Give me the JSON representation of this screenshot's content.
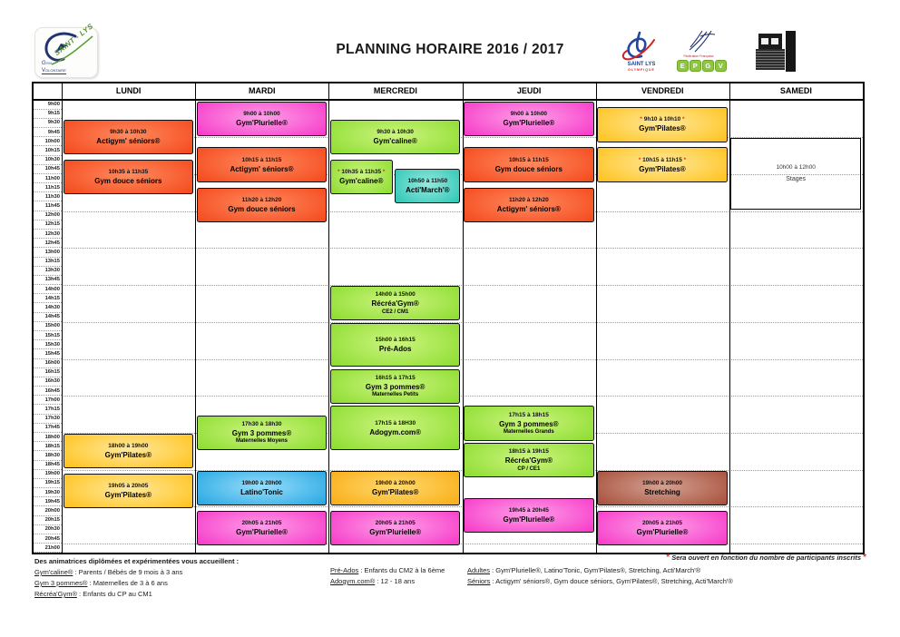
{
  "title": "PLANNING HORAIRE  2016 / 2017",
  "logos": {
    "club": {
      "arc_text": "SAINT - LYS",
      "line1": "Gym",
      "line2": "Volontaire"
    },
    "olympique": {
      "line1": "SAINT LYS",
      "line2": "OLYMPIQUE"
    },
    "epgv": {
      "federation": "Fédération Française",
      "letters": [
        "E",
        "P",
        "G",
        "V"
      ]
    }
  },
  "palette": {
    "red": {
      "base": "#f44b1e",
      "light": "#ff8a5f"
    },
    "magenta": {
      "base": "#f63cc9",
      "light": "#ff9fe8"
    },
    "green": {
      "base": "#8fdd33",
      "light": "#ccf57f"
    },
    "gold": {
      "base": "#ffc320",
      "light": "#ffe99b"
    },
    "amber": {
      "base": "#f9ae17",
      "light": "#ffd96e"
    },
    "blue": {
      "base": "#29a9e3",
      "light": "#97ddfb"
    },
    "teal": {
      "base": "#30c7b6",
      "light": "#96e9de"
    },
    "brown": {
      "base": "#a8513c",
      "light": "#d3a193"
    },
    "white": {
      "base": "#ffffff",
      "light": "#ffffff"
    }
  },
  "schedule": {
    "days": [
      "LUNDI",
      "MARDI",
      "MERCREDI",
      "JEUDI",
      "VENDREDI",
      "SAMEDI"
    ],
    "time_labels": [
      "9h00",
      "9h15",
      "9h30",
      "9h45",
      "10h00",
      "10h15",
      "10h30",
      "10h45",
      "11h00",
      "11h15",
      "11h30",
      "11h45",
      "12h00",
      "12h15",
      "12h30",
      "12h45",
      "13h00",
      "13h15",
      "13h30",
      "13h45",
      "14h00",
      "14h15",
      "14h30",
      "14h45",
      "15h00",
      "15h15",
      "15h30",
      "15h45",
      "16h00",
      "16h15",
      "16h30",
      "16h45",
      "17h00",
      "17h15",
      "17h30",
      "17h45",
      "18h00",
      "18h15",
      "18h30",
      "18h45",
      "19h00",
      "19h15",
      "19h30",
      "19h45",
      "20h00",
      "20h15",
      "20h30",
      "20h45",
      "21h00"
    ],
    "blocks": [
      {
        "day": 0,
        "start": 570,
        "end": 630,
        "time": "9h30 à 10h30",
        "name": "Actigym' séniors®",
        "sub": "",
        "color": "red",
        "starred": false,
        "half": ""
      },
      {
        "day": 0,
        "start": 635,
        "end": 695,
        "time": "10h35 à 11h35",
        "name": "Gym douce séniors",
        "sub": "",
        "color": "red",
        "starred": false,
        "half": ""
      },
      {
        "day": 0,
        "start": 1080,
        "end": 1140,
        "time": "18h00 à 19h00",
        "name": "Gym'Pilates®",
        "sub": "",
        "color": "gold",
        "starred": false,
        "half": ""
      },
      {
        "day": 0,
        "start": 1145,
        "end": 1205,
        "time": "19h05 à 20h05",
        "name": "Gym'Pilates®",
        "sub": "",
        "color": "gold",
        "starred": false,
        "half": ""
      },
      {
        "day": 1,
        "start": 540,
        "end": 600,
        "time": "9h00 à 10h00",
        "name": "Gym'Plurielle®",
        "sub": "",
        "color": "magenta",
        "starred": false,
        "half": ""
      },
      {
        "day": 1,
        "start": 615,
        "end": 675,
        "time": "10h15 à 11h15",
        "name": "Actigym' séniors®",
        "sub": "",
        "color": "red",
        "starred": false,
        "half": ""
      },
      {
        "day": 1,
        "start": 680,
        "end": 740,
        "time": "11h20 à 12h20",
        "name": "Gym douce séniors",
        "sub": "",
        "color": "red",
        "starred": false,
        "half": ""
      },
      {
        "day": 1,
        "start": 1050,
        "end": 1110,
        "time": "17h30 à 18h30",
        "name": "Gym 3 pommes®",
        "sub": "Maternelles Moyens",
        "color": "green",
        "starred": false,
        "half": ""
      },
      {
        "day": 1,
        "start": 1140,
        "end": 1200,
        "time": "19h00 à 20h00",
        "name": "Latino'Tonic",
        "sub": "",
        "color": "blue",
        "starred": false,
        "half": ""
      },
      {
        "day": 1,
        "start": 1205,
        "end": 1265,
        "time": "20h05 à 21h05",
        "name": "Gym'Plurielle®",
        "sub": "",
        "color": "magenta",
        "starred": false,
        "half": ""
      },
      {
        "day": 2,
        "start": 570,
        "end": 630,
        "time": "9h30 à 10h30",
        "name": "Gym'caline®",
        "sub": "",
        "color": "green",
        "starred": false,
        "half": ""
      },
      {
        "day": 2,
        "start": 635,
        "end": 695,
        "time": "10h35 à 11h35",
        "name": "Gym'caline®",
        "sub": "",
        "color": "green",
        "starred": true,
        "half": "left"
      },
      {
        "day": 2,
        "start": 650,
        "end": 710,
        "time": "10h50 à 11h50",
        "name": "Acti'March'®",
        "sub": "",
        "color": "teal",
        "starred": false,
        "half": "right"
      },
      {
        "day": 2,
        "start": 840,
        "end": 900,
        "time": "14h00 à 15h00",
        "name": "Récréa'Gym®",
        "sub": "CE2 / CM1",
        "color": "green",
        "starred": false,
        "half": ""
      },
      {
        "day": 2,
        "start": 900,
        "end": 975,
        "time": "15h00 à 16h15",
        "name": "Pré-Ados",
        "sub": "",
        "color": "green",
        "starred": false,
        "half": ""
      },
      {
        "day": 2,
        "start": 975,
        "end": 1035,
        "time": "16h15 à 17h15",
        "name": "Gym 3 pommes®",
        "sub": "Maternelles Petits",
        "color": "green",
        "starred": false,
        "half": ""
      },
      {
        "day": 2,
        "start": 1035,
        "end": 1110,
        "time": "17h15 à 18H30",
        "name": "Adogym.com®",
        "sub": "",
        "color": "green",
        "starred": false,
        "half": ""
      },
      {
        "day": 2,
        "start": 1140,
        "end": 1200,
        "time": "19h00 à 20h00",
        "name": "Gym'Pilates®",
        "sub": "",
        "color": "amber",
        "starred": false,
        "half": ""
      },
      {
        "day": 2,
        "start": 1205,
        "end": 1265,
        "time": "20h05 à 21h05",
        "name": "Gym'Plurielle®",
        "sub": "",
        "color": "magenta",
        "starred": false,
        "half": ""
      },
      {
        "day": 3,
        "start": 540,
        "end": 600,
        "time": "9h00 à 10h00",
        "name": "Gym'Plurielle®",
        "sub": "",
        "color": "magenta",
        "starred": false,
        "half": ""
      },
      {
        "day": 3,
        "start": 615,
        "end": 675,
        "time": "10h15 à 11h15",
        "name": "Gym douce séniors",
        "sub": "",
        "color": "red",
        "starred": false,
        "half": ""
      },
      {
        "day": 3,
        "start": 680,
        "end": 740,
        "time": "11h20 à 12h20",
        "name": "Actigym' séniors®",
        "sub": "",
        "color": "red",
        "starred": false,
        "half": ""
      },
      {
        "day": 3,
        "start": 1035,
        "end": 1095,
        "time": "17h15 à 18h15",
        "name": "Gym 3 pommes®",
        "sub": "Maternelles Grands",
        "color": "green",
        "starred": false,
        "half": ""
      },
      {
        "day": 3,
        "start": 1095,
        "end": 1155,
        "time": "18h15 à 19h15",
        "name": "Récréa'Gym®",
        "sub": "CP / CE1",
        "color": "green",
        "starred": false,
        "half": ""
      },
      {
        "day": 3,
        "start": 1185,
        "end": 1245,
        "time": "19h45 à 20h45",
        "name": "Gym'Plurielle®",
        "sub": "",
        "color": "magenta",
        "starred": false,
        "half": ""
      },
      {
        "day": 4,
        "start": 550,
        "end": 610,
        "time": "9h10 à 10h10",
        "name": "Gym'Pilates®",
        "sub": "",
        "color": "gold",
        "starred": true,
        "half": ""
      },
      {
        "day": 4,
        "start": 615,
        "end": 675,
        "time": "10h15 à 11h15",
        "name": "Gym'Pilates®",
        "sub": "",
        "color": "gold",
        "starred": true,
        "half": ""
      },
      {
        "day": 4,
        "start": 1140,
        "end": 1200,
        "time": "19h00 à 20h00",
        "name": "Stretching",
        "sub": "",
        "color": "brown",
        "starred": false,
        "half": ""
      },
      {
        "day": 4,
        "start": 1205,
        "end": 1265,
        "time": "20h05 à 21h05",
        "name": "Gym'Plurielle®",
        "sub": "",
        "color": "magenta",
        "starred": false,
        "half": ""
      },
      {
        "day": 5,
        "start": 600,
        "end": 720,
        "time": "10h00 à 12h00",
        "name": "Stages",
        "sub": "",
        "color": "white",
        "starred": false,
        "half": ""
      }
    ]
  },
  "footer": {
    "heading": "Des animatrices diplômées et expérimentées vous accueillent :",
    "col1": [
      {
        "term": "Gym'caline®",
        "rest": " : Parents / Bébés de 9 mois à 3 ans"
      },
      {
        "term": "Gym 3 pommes®",
        "rest": " : Maternelles de 3 à 6 ans"
      },
      {
        "term": "Récréa'Gym®",
        "rest": " : Enfants du CP au CM1"
      }
    ],
    "col2": [
      {
        "term": "Pré-Ados",
        "rest": " : Enfants du CM2 à la 6ème"
      },
      {
        "term": "Adogym.com®",
        "rest": " : 12 - 18 ans"
      }
    ],
    "col3": [
      {
        "term": "Adultes",
        "rest": " : Gym'Plurielle®, Latino'Tonic, Gym'Pilates®, Stretching, Acti'March'®"
      },
      {
        "term": "Séniors",
        "rest": " : Actigym' séniors®, Gym douce séniors, Gym'Pilates®, Stretching, Acti'March'®"
      }
    ],
    "note": "Sera ouvert en fonction du nombre de participants inscrits",
    "note_star": "*"
  }
}
